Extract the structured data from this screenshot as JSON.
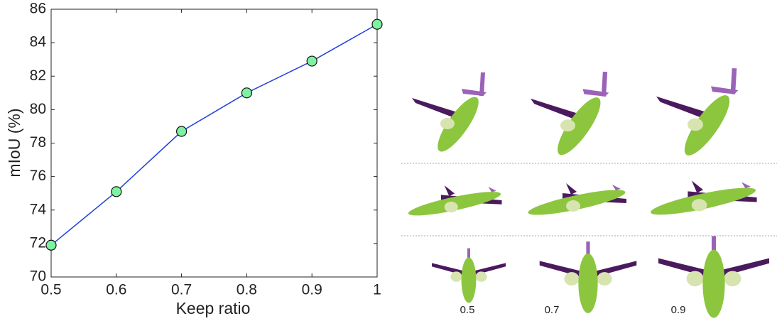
{
  "chart_data": {
    "type": "line",
    "x_label": "Keep ratio",
    "y_label": "mIoU (%)",
    "x": [
      0.5,
      0.6,
      0.7,
      0.8,
      0.9,
      1
    ],
    "series": [
      {
        "color": "#1f3fdb",
        "marker_color": "#7ef2a3",
        "values": [
          71.9,
          75.1,
          78.7,
          81.0,
          82.9,
          85.1
        ]
      }
    ],
    "xlim": [
      0.5,
      1
    ],
    "xticks": [
      0.5,
      0.6,
      0.7,
      0.8,
      0.9,
      1
    ],
    "ylim": [
      70,
      86
    ],
    "yticks": [
      70,
      72,
      74,
      76,
      78,
      80,
      82,
      84,
      86
    ],
    "grid": false
  },
  "thumbnails": {
    "labels": [
      "0.5",
      "0.7",
      "0.9"
    ]
  }
}
